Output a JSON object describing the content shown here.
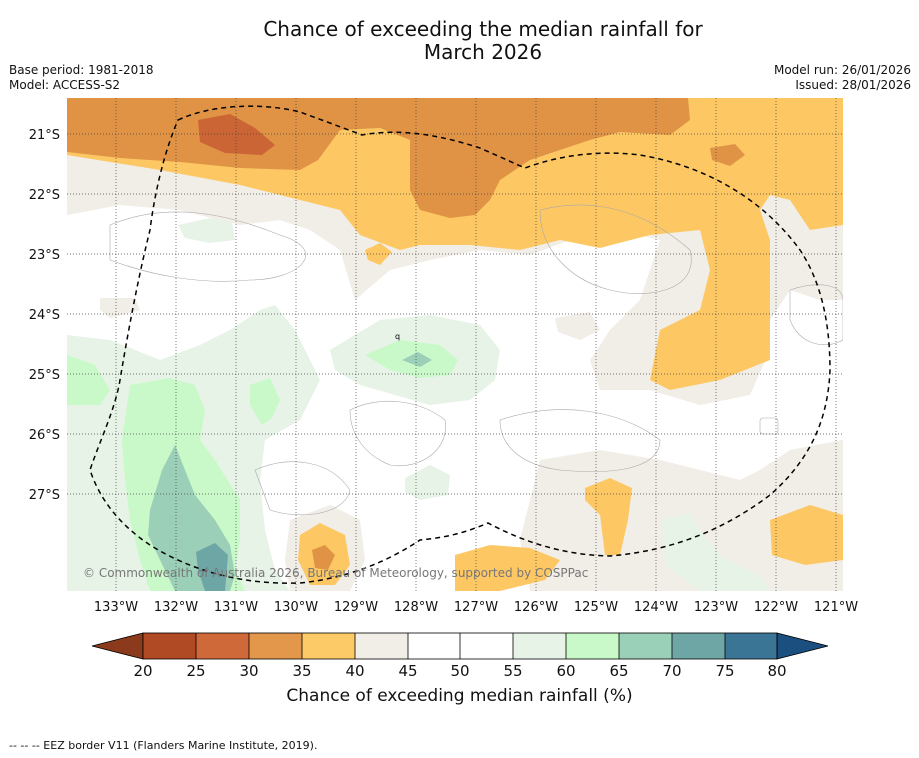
{
  "title_line1": "Chance of exceeding the median rainfall for",
  "title_line2": "March 2026",
  "base_period": "Base period: 1981-2018",
  "model": "Model: ACCESS-S2",
  "model_run": "Model run: 26/01/2026",
  "issued": "Issued: 28/01/2026",
  "copyright": "© Commonwealth of Australia 2026, Bureau of Meteorology, supported by COSPPac",
  "lat_labels": [
    "21°S",
    "22°S",
    "23°S",
    "24°S",
    "25°S",
    "26°S",
    "27°S"
  ],
  "lon_labels": [
    "133°W",
    "132°W",
    "131°W",
    "130°W",
    "129°W",
    "128°W",
    "127°W",
    "126°W",
    "125°W",
    "124°W",
    "123°W",
    "122°W",
    "121°W"
  ],
  "colorbar": {
    "title": "Chance of exceeding median rainfall (%)",
    "ticks": [
      "20",
      "25",
      "30",
      "35",
      "40",
      "45",
      "50",
      "55",
      "60",
      "65",
      "70",
      "75",
      "80"
    ],
    "colors": [
      "#8c3a1c",
      "#b04a24",
      "#d0693a",
      "#e3974a",
      "#fdca68",
      "#f1ede7",
      "#ffffff",
      "#ffffff",
      "#e8f3e8",
      "#c9f9c9",
      "#9ad0b8",
      "#6ea5a5",
      "#3b7596",
      "#1a4f80"
    ]
  },
  "map_colors": {
    "c25_30": "#cc6535",
    "c30_35": "#e09345",
    "c35_40": "#fdc863",
    "c40_45": "#f1ede7",
    "c55_60": "#e7f3e7",
    "c60_65": "#c9f9c9",
    "c65_70": "#9ccfb8",
    "c70_75": "#6ea5a5"
  },
  "footnote": "--  --  -- EEZ border V11 (Flanders Marine Institute, 2019)."
}
